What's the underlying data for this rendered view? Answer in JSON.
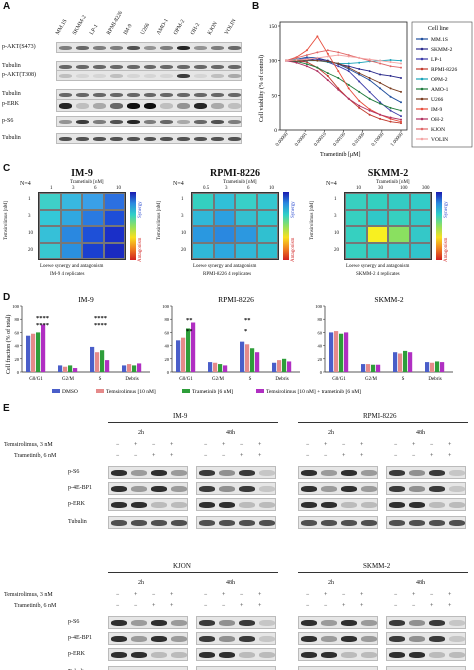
{
  "panels": {
    "a": "A",
    "b": "B",
    "c": "C",
    "d": "D",
    "e": "E"
  },
  "panelA": {
    "lanes": [
      "MM.1S",
      "SKMM-2",
      "LP-1",
      "RPMI-8226",
      "IM-9",
      "U266",
      "AMO-1",
      "OPM-2",
      "OH-2",
      "KJON",
      "VOLIN"
    ],
    "rows": [
      "p-AKT(S473)",
      "Tubulin",
      "p-AKT(T308)",
      "Tubulin",
      "p-ERK",
      "p-S6",
      "Tubulin"
    ]
  },
  "panelB": {
    "title_legend": "Cell line",
    "ylabel": "Cell viability (% of control)",
    "xlabel": "Trametinib [μM]",
    "yticks": [
      "0",
      "50",
      "100",
      "150"
    ],
    "xticks": [
      "0.00000",
      "0.00001",
      "0.00010",
      "0.00100",
      "0.01000",
      "0.10000",
      "1.00000"
    ],
    "legend": [
      "MM.1S",
      "SKMM-2",
      "LP-1",
      "RPMI-8226",
      "OPM-2",
      "AMO-1",
      "U266",
      "IM-9",
      "OH-2",
      "KJON",
      "VOLIN"
    ],
    "colors": [
      "#1f4e9c",
      "#2b2b8c",
      "#3a3aa8",
      "#c0392b",
      "#17a2b8",
      "#1f7a3c",
      "#7a3c1f",
      "#e74c3c",
      "#b03060",
      "#e06666",
      "#f4a4a4"
    ]
  },
  "panelC": [
    {
      "title": "IM-9",
      "n": "N=4",
      "top": "Trametinib [nM]",
      "side": "Temsirolimus [nM]",
      "foot": "Loewe synergy and antagonism",
      "foot2": "IM-9 4 replicates",
      "xt": [
        "1",
        "3",
        "6",
        "10"
      ],
      "yt": [
        "1",
        "3",
        "10",
        "20"
      ],
      "syn": "Synergy",
      "ant": "Antagonism"
    },
    {
      "title": "RPMI-8226",
      "n": "N=4",
      "top": "Trametinib [nM]",
      "side": "Temsirolimus [nM]",
      "foot": "Loewe synergy and antagonism",
      "foot2": "RPMI-8226 4 replicates",
      "xt": [
        "0.5",
        "3",
        "6",
        "10"
      ],
      "yt": [
        "1",
        "3",
        "10",
        "20"
      ],
      "syn": "Synergy",
      "ant": "Antagonism"
    },
    {
      "title": "SKMM-2",
      "n": "N=4",
      "top": "Trametinib [nM]",
      "side": "Temsirolimus [nM]",
      "foot": "Loewe synergy and antagonism",
      "foot2": "SKMM-2 4 replicates",
      "xt": [
        "10",
        "30",
        "100",
        "300"
      ],
      "yt": [
        "1",
        "3",
        "10",
        "20"
      ],
      "syn": "Synergy",
      "ant": "Antagonism"
    }
  ],
  "panelD": {
    "ylabel": "Cell fraction (% of total)",
    "titles": [
      "IM-9",
      "RPMI-8226",
      "SKMM-2"
    ],
    "groups": [
      "G0/G1",
      "G2/M",
      "S",
      "Debris"
    ],
    "legend": [
      "DMSO",
      "Temsirolimus [10 nM]",
      "Trametinib [6 nM]",
      "Temsirolimus [10 nM] + trametinib [6 nM]"
    ],
    "colors": [
      "#4a5ec9",
      "#e58a8a",
      "#2e9e3a",
      "#b02fc2"
    ],
    "sig_im9": [
      "****",
      "****",
      "****",
      "****"
    ],
    "sig_rpmi": [
      "**",
      "**",
      "**",
      "*"
    ],
    "yticks": [
      "0",
      "20",
      "40",
      "60",
      "80",
      "100"
    ]
  },
  "panelE": {
    "blocks": [
      {
        "title": "IM-9",
        "t1": "2h",
        "t2": "48h"
      },
      {
        "title": "RPMI-8226",
        "t1": "2h",
        "t2": "48h"
      },
      {
        "title": "KJON",
        "t1": "2h",
        "t2": "48h"
      },
      {
        "title": "SKMM-2",
        "t1": "2h",
        "t2": "48h"
      }
    ],
    "row1": "Temsirolimus, 3 nM",
    "row2": "Trametinib, 6 nM",
    "signs1": [
      "−",
      "+",
      "−",
      "+"
    ],
    "signs2": [
      "−",
      "−",
      "+",
      "+"
    ],
    "rows": [
      "p-S6",
      "p-4E-BP1",
      "p-ERK",
      "Tubulin"
    ]
  }
}
